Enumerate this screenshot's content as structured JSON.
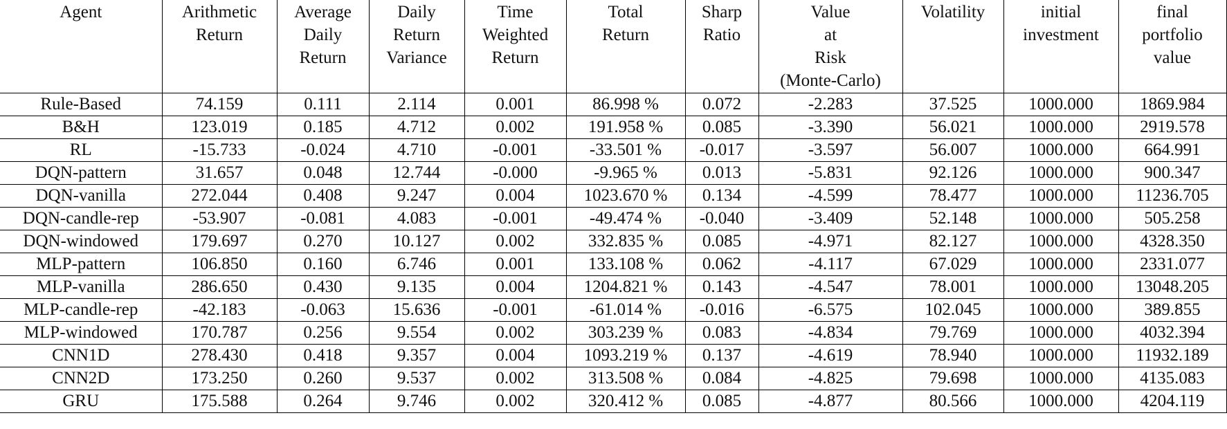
{
  "table": {
    "headers": [
      "Agent",
      "Arithmetic\nReturn",
      "Average\nDaily\nReturn",
      "Daily\nReturn\nVariance",
      "Time\nWeighted\nReturn",
      "Total\nReturn",
      "Sharp\nRatio",
      "Value\nat\nRisk\n(Monte-Carlo)",
      "Volatility",
      "initial\ninvestment",
      "final\nportfolio\nvalue"
    ],
    "rows": [
      [
        "Rule-Based",
        "74.159",
        "0.111",
        "2.114",
        "0.001",
        "86.998 %",
        "0.072",
        "-2.283",
        "37.525",
        "1000.000",
        "1869.984"
      ],
      [
        "B&H",
        "123.019",
        "0.185",
        "4.712",
        "0.002",
        "191.958 %",
        "0.085",
        "-3.390",
        "56.021",
        "1000.000",
        "2919.578"
      ],
      [
        "RL",
        "-15.733",
        "-0.024",
        "4.710",
        "-0.001",
        "-33.501 %",
        "-0.017",
        "-3.597",
        "56.007",
        "1000.000",
        "664.991"
      ],
      [
        "DQN-pattern",
        "31.657",
        "0.048",
        "12.744",
        "-0.000",
        "-9.965 %",
        "0.013",
        "-5.831",
        "92.126",
        "1000.000",
        "900.347"
      ],
      [
        "DQN-vanilla",
        "272.044",
        "0.408",
        "9.247",
        "0.004",
        "1023.670 %",
        "0.134",
        "-4.599",
        "78.477",
        "1000.000",
        "11236.705"
      ],
      [
        "DQN-candle-rep",
        "-53.907",
        "-0.081",
        "4.083",
        "-0.001",
        "-49.474 %",
        "-0.040",
        "-3.409",
        "52.148",
        "1000.000",
        "505.258"
      ],
      [
        "DQN-windowed",
        "179.697",
        "0.270",
        "10.127",
        "0.002",
        "332.835 %",
        "0.085",
        "-4.971",
        "82.127",
        "1000.000",
        "4328.350"
      ],
      [
        "MLP-pattern",
        "106.850",
        "0.160",
        "6.746",
        "0.001",
        "133.108 %",
        "0.062",
        "-4.117",
        "67.029",
        "1000.000",
        "2331.077"
      ],
      [
        "MLP-vanilla",
        "286.650",
        "0.430",
        "9.135",
        "0.004",
        "1204.821 %",
        "0.143",
        "-4.547",
        "78.001",
        "1000.000",
        "13048.205"
      ],
      [
        "MLP-candle-rep",
        "-42.183",
        "-0.063",
        "15.636",
        "-0.001",
        "-61.014 %",
        "-0.016",
        "-6.575",
        "102.045",
        "1000.000",
        "389.855"
      ],
      [
        "MLP-windowed",
        "170.787",
        "0.256",
        "9.554",
        "0.002",
        "303.239 %",
        "0.083",
        "-4.834",
        "79.769",
        "1000.000",
        "4032.394"
      ],
      [
        "CNN1D",
        "278.430",
        "0.418",
        "9.357",
        "0.004",
        "1093.219 %",
        "0.137",
        "-4.619",
        "78.940",
        "1000.000",
        "11932.189"
      ],
      [
        "CNN2D",
        "173.250",
        "0.260",
        "9.537",
        "0.002",
        "313.508 %",
        "0.084",
        "-4.825",
        "79.698",
        "1000.000",
        "4135.083"
      ],
      [
        "GRU",
        "175.588",
        "0.264",
        "9.746",
        "0.002",
        "320.412 %",
        "0.085",
        "-4.877",
        "80.566",
        "1000.000",
        "4204.119"
      ]
    ]
  }
}
